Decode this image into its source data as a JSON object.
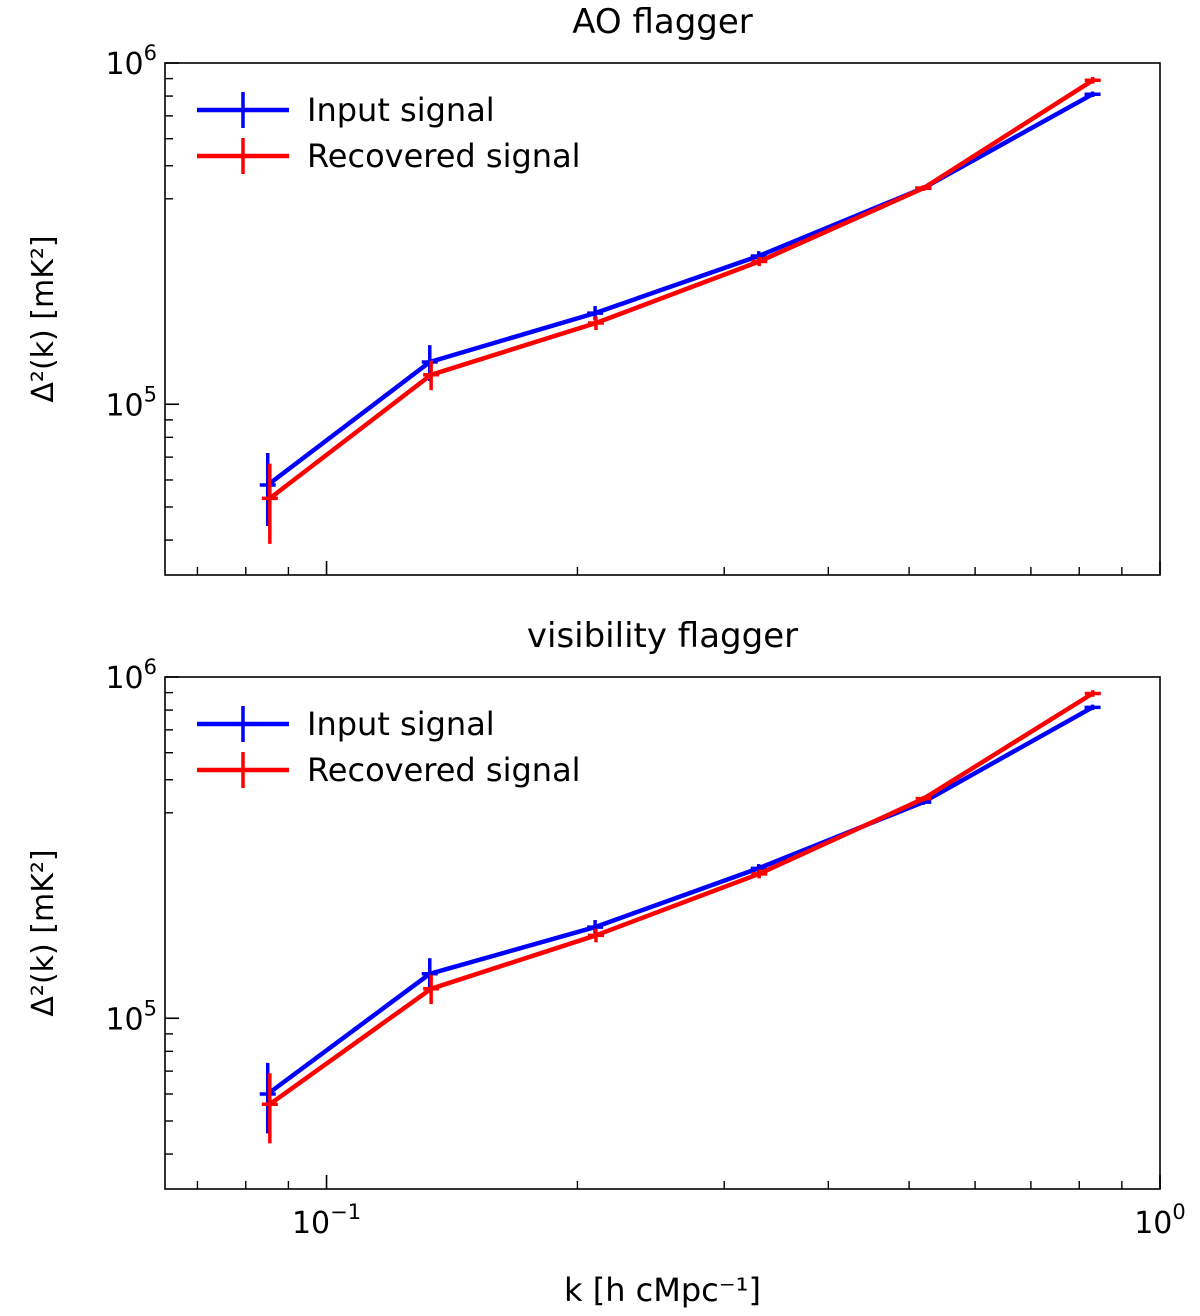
{
  "chart_data": [
    {
      "type": "line",
      "title": "AO flagger",
      "xlabel": "",
      "ylabel": "Δ²(k) [mK²]",
      "x_scale": "log",
      "y_scale": "log",
      "xlim": [
        0.064,
        1.0
      ],
      "ylim": [
        31600,
        1000000
      ],
      "x_tick_labels": [],
      "y_tick_labels": [
        "10^5",
        "10^6"
      ],
      "legend_position": "upper-left",
      "series": [
        {
          "name": "Input signal",
          "color": "#0000ff",
          "x": [
            0.085,
            0.133,
            0.21,
            0.33,
            0.52,
            0.83
          ],
          "y": [
            58000,
            133000,
            185000,
            272000,
            430000,
            810000
          ],
          "yerr": [
            14000,
            16000,
            9000,
            9000,
            8000,
            15000
          ]
        },
        {
          "name": "Recovered signal",
          "color": "#ff0000",
          "x": [
            0.0855,
            0.1335,
            0.2105,
            0.3305,
            0.5205,
            0.8305
          ],
          "y": [
            53000,
            122000,
            173000,
            262000,
            430000,
            890000
          ],
          "yerr": [
            14000,
            12000,
            8000,
            8000,
            8000,
            20000
          ]
        }
      ]
    },
    {
      "type": "line",
      "title": "visibility flagger",
      "xlabel": "k [h cMpc⁻¹]",
      "ylabel": "Δ²(k) [mK²]",
      "x_scale": "log",
      "y_scale": "log",
      "xlim": [
        0.064,
        1.0
      ],
      "ylim": [
        31600,
        1000000
      ],
      "x_tick_labels": [
        "10^-1",
        "10^0"
      ],
      "y_tick_labels": [
        "10^5",
        "10^6"
      ],
      "legend_position": "upper-left",
      "series": [
        {
          "name": "Input signal",
          "color": "#0000ff",
          "x": [
            0.085,
            0.133,
            0.21,
            0.33,
            0.52,
            0.83
          ],
          "y": [
            60000,
            135000,
            185000,
            275000,
            430000,
            815000
          ],
          "yerr": [
            14000,
            15000,
            9000,
            8000,
            8000,
            15000
          ]
        },
        {
          "name": "Recovered signal",
          "color": "#ff0000",
          "x": [
            0.0855,
            0.1335,
            0.2105,
            0.3305,
            0.5205,
            0.8305
          ],
          "y": [
            56000,
            122000,
            175000,
            265000,
            440000,
            895000
          ],
          "yerr": [
            13000,
            12000,
            8000,
            8000,
            8000,
            20000
          ]
        }
      ]
    }
  ]
}
